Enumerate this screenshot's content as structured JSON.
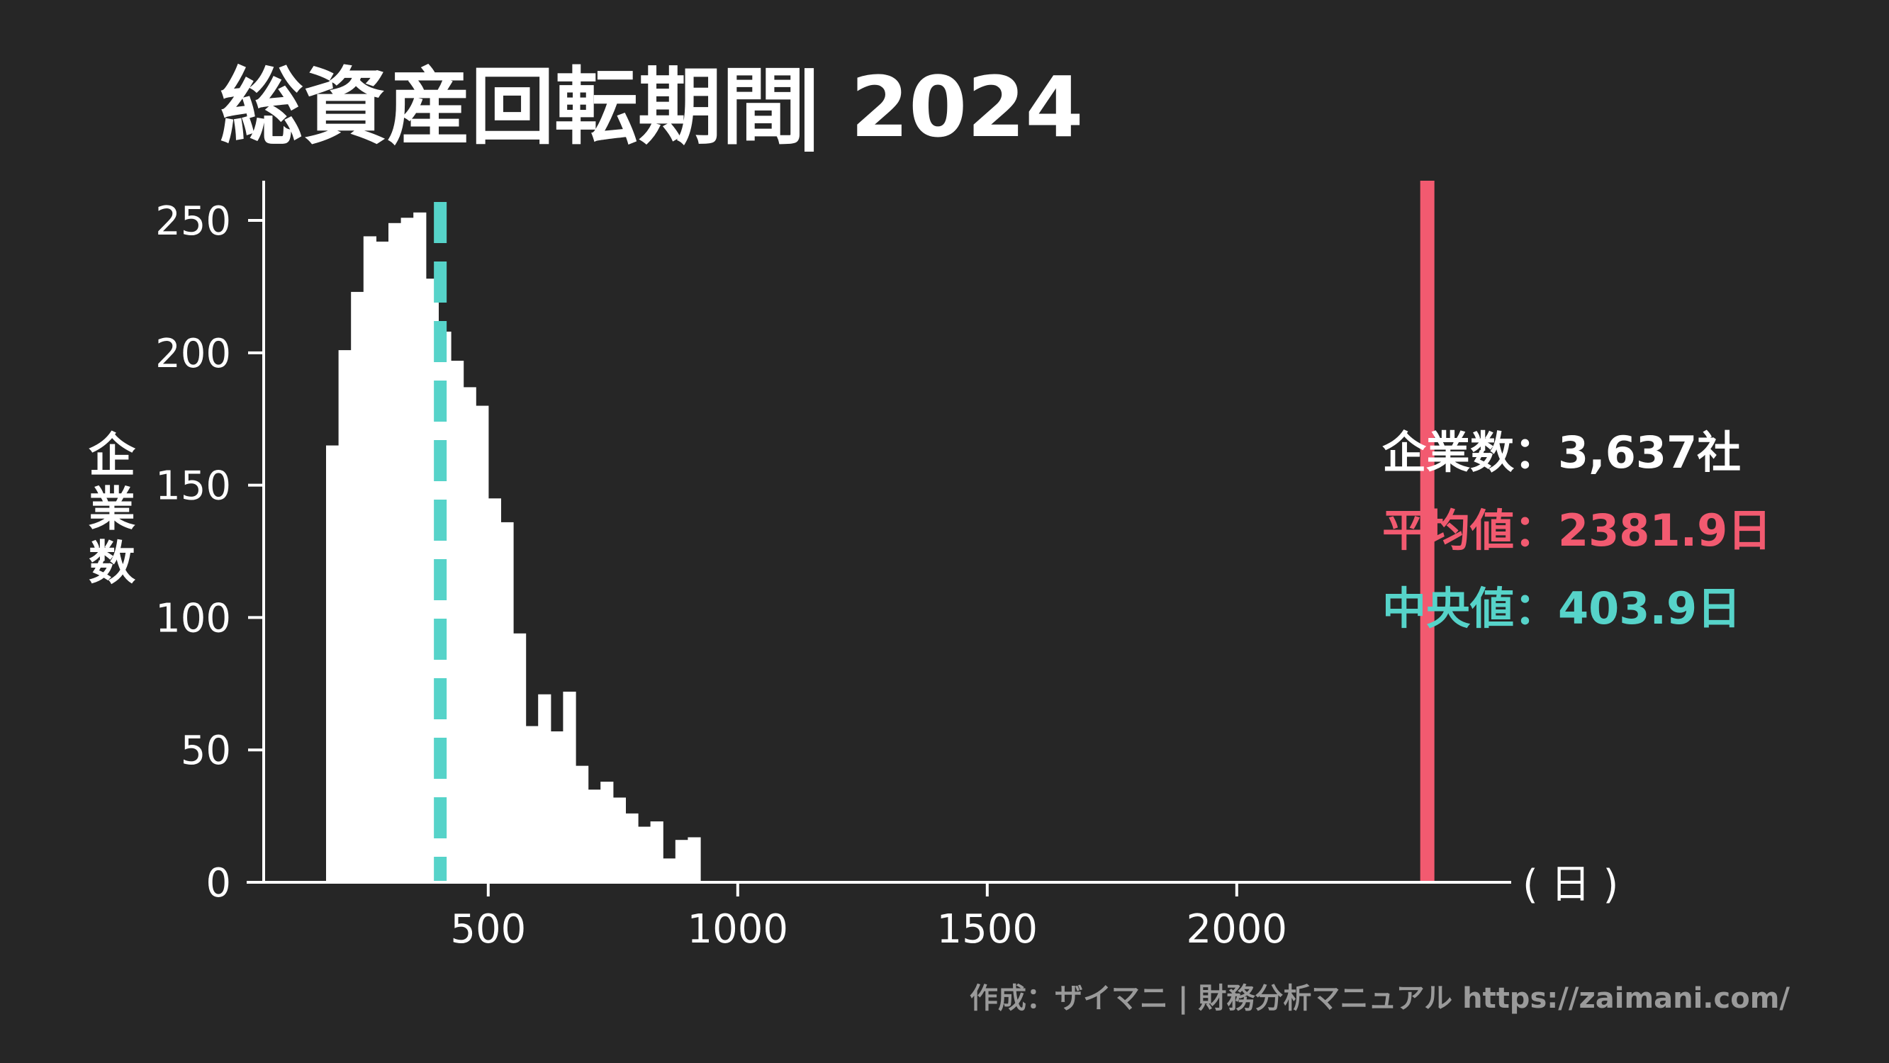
{
  "title": "総資産回転期間",
  "title_separator": "|",
  "year": "2024",
  "credit": "作成：ザイマニ | 財務分析マニュアル https://zaimani.com/",
  "colors": {
    "background": "#262626",
    "bars": "#ffffff",
    "mean": "#f25a70",
    "median": "#56d3c9",
    "axis": "#ffffff",
    "credit": "#9a9a9a"
  },
  "stats": {
    "count_label": "企業数",
    "count_value": "3,637社",
    "mean_label": "平均値",
    "mean_value": "2381.9日",
    "median_label": "中央値",
    "median_value": "403.9日",
    "separator": "："
  },
  "chart_data": {
    "type": "histogram",
    "ylabel": "企業数",
    "x_unit": "( 日 )",
    "xlim": [
      50,
      2550
    ],
    "ylim": [
      0,
      265
    ],
    "x_ticks": [
      500,
      1000,
      1500,
      2000
    ],
    "y_ticks": [
      0,
      50,
      100,
      150,
      200,
      250
    ],
    "bin_width": 25,
    "bins": [
      {
        "x0": 175,
        "x1": 200,
        "count": 165
      },
      {
        "x0": 200,
        "x1": 225,
        "count": 201
      },
      {
        "x0": 225,
        "x1": 250,
        "count": 223
      },
      {
        "x0": 250,
        "x1": 275,
        "count": 244
      },
      {
        "x0": 275,
        "x1": 300,
        "count": 242
      },
      {
        "x0": 300,
        "x1": 325,
        "count": 249
      },
      {
        "x0": 325,
        "x1": 350,
        "count": 251
      },
      {
        "x0": 350,
        "x1": 375,
        "count": 253
      },
      {
        "x0": 375,
        "x1": 400,
        "count": 228
      },
      {
        "x0": 400,
        "x1": 425,
        "count": 208
      },
      {
        "x0": 425,
        "x1": 450,
        "count": 197
      },
      {
        "x0": 450,
        "x1": 475,
        "count": 187
      },
      {
        "x0": 475,
        "x1": 500,
        "count": 180
      },
      {
        "x0": 500,
        "x1": 525,
        "count": 145
      },
      {
        "x0": 525,
        "x1": 550,
        "count": 136
      },
      {
        "x0": 550,
        "x1": 575,
        "count": 94
      },
      {
        "x0": 575,
        "x1": 600,
        "count": 59
      },
      {
        "x0": 600,
        "x1": 625,
        "count": 71
      },
      {
        "x0": 625,
        "x1": 650,
        "count": 57
      },
      {
        "x0": 650,
        "x1": 675,
        "count": 72
      },
      {
        "x0": 675,
        "x1": 700,
        "count": 44
      },
      {
        "x0": 700,
        "x1": 725,
        "count": 35
      },
      {
        "x0": 725,
        "x1": 750,
        "count": 38
      },
      {
        "x0": 750,
        "x1": 775,
        "count": 32
      },
      {
        "x0": 775,
        "x1": 800,
        "count": 26
      },
      {
        "x0": 800,
        "x1": 825,
        "count": 21
      },
      {
        "x0": 825,
        "x1": 850,
        "count": 23
      },
      {
        "x0": 850,
        "x1": 875,
        "count": 9
      },
      {
        "x0": 875,
        "x1": 900,
        "count": 16
      },
      {
        "x0": 900,
        "x1": 925,
        "count": 17
      }
    ],
    "mean": 2381.9,
    "median": 403.9,
    "count": 3637
  }
}
